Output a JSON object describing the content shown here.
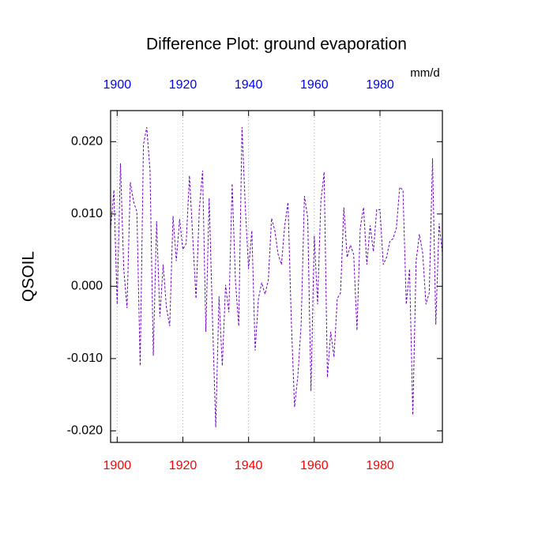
{
  "chart_data": {
    "type": "line",
    "title": "Difference Plot: ground evaporation",
    "units_label": "mm/d",
    "ylabel": "QSOIL",
    "x": [
      1898,
      1899,
      1900,
      1901,
      1902,
      1903,
      1904,
      1905,
      1906,
      1907,
      1908,
      1909,
      1910,
      1911,
      1912,
      1913,
      1914,
      1915,
      1916,
      1917,
      1918,
      1919,
      1920,
      1921,
      1922,
      1923,
      1924,
      1925,
      1926,
      1927,
      1928,
      1929,
      1930,
      1931,
      1932,
      1933,
      1934,
      1935,
      1936,
      1937,
      1938,
      1939,
      1940,
      1941,
      1942,
      1943,
      1944,
      1945,
      1946,
      1947,
      1948,
      1949,
      1950,
      1951,
      1952,
      1953,
      1954,
      1955,
      1956,
      1957,
      1958,
      1959,
      1960,
      1961,
      1962,
      1963,
      1964,
      1965,
      1966,
      1967,
      1968,
      1969,
      1970,
      1971,
      1972,
      1973,
      1974,
      1975,
      1976,
      1977,
      1978,
      1979,
      1980,
      1981,
      1982,
      1983,
      1984,
      1985,
      1986,
      1987,
      1988,
      1989,
      1990,
      1991,
      1992,
      1993,
      1994,
      1995,
      1996,
      1997,
      1998,
      1999
    ],
    "series": [
      {
        "color": "#6a00c8",
        "dashed": true,
        "values": [
          0.0079,
          0.0133,
          -0.0025,
          0.017,
          0.0024,
          -0.003,
          0.0144,
          0.0117,
          0.0103,
          -0.011,
          0.0196,
          0.022,
          0.016,
          -0.0096,
          0.009,
          -0.0042,
          0.003,
          -0.003,
          -0.0055,
          0.0097,
          0.0035,
          0.0093,
          0.0051,
          0.0059,
          0.0153,
          0.0068,
          -0.0017,
          0.0106,
          0.016,
          -0.0063,
          0.0122,
          -0.0042,
          -0.0195,
          -0.0014,
          -0.011,
          0.0002,
          -0.0036,
          0.0142,
          0.0008,
          -0.0055,
          0.022,
          0.011,
          0.0024,
          0.0077,
          -0.0089,
          -0.0017,
          0.0005,
          -0.0011,
          0.0008,
          0.0094,
          0.0077,
          0.0044,
          0.003,
          0.0084,
          0.0116,
          -0.0047,
          -0.0167,
          -0.0124,
          -0.0053,
          0.0125,
          0.0095,
          -0.0145,
          0.007,
          -0.0025,
          0.0117,
          0.0158,
          -0.0126,
          -0.0063,
          -0.0098,
          -0.0017,
          -0.0009,
          0.0109,
          0.004,
          0.0057,
          0.0044,
          -0.0061,
          0.0081,
          0.0109,
          0.003,
          0.0084,
          0.0048,
          0.0106,
          0.0106,
          0.003,
          0.004,
          0.0062,
          0.0066,
          0.0081,
          0.0137,
          0.0133,
          -0.0025,
          0.0024,
          -0.0178,
          0.0035,
          0.0072,
          0.0046,
          -0.0025,
          -0.0009,
          0.0177,
          -0.0053,
          0.0087,
          0.0046
        ]
      }
    ],
    "xlim": [
      1898,
      1999
    ],
    "xticks": [
      1900,
      1920,
      1940,
      1960,
      1980
    ],
    "ylim": [
      -0.0216,
      0.0243
    ],
    "yticks": [
      {
        "value": 0.02,
        "label": "0.020"
      },
      {
        "value": 0.01,
        "label": "0.010"
      },
      {
        "value": 0,
        "label": "0.000"
      },
      {
        "value": -0.01,
        "label": "-0.010"
      },
      {
        "value": -0.02,
        "label": "-0.020"
      }
    ],
    "grid": "x",
    "top_axis_color": "#0000ff",
    "bottom_axis_color": "#ff0000"
  }
}
